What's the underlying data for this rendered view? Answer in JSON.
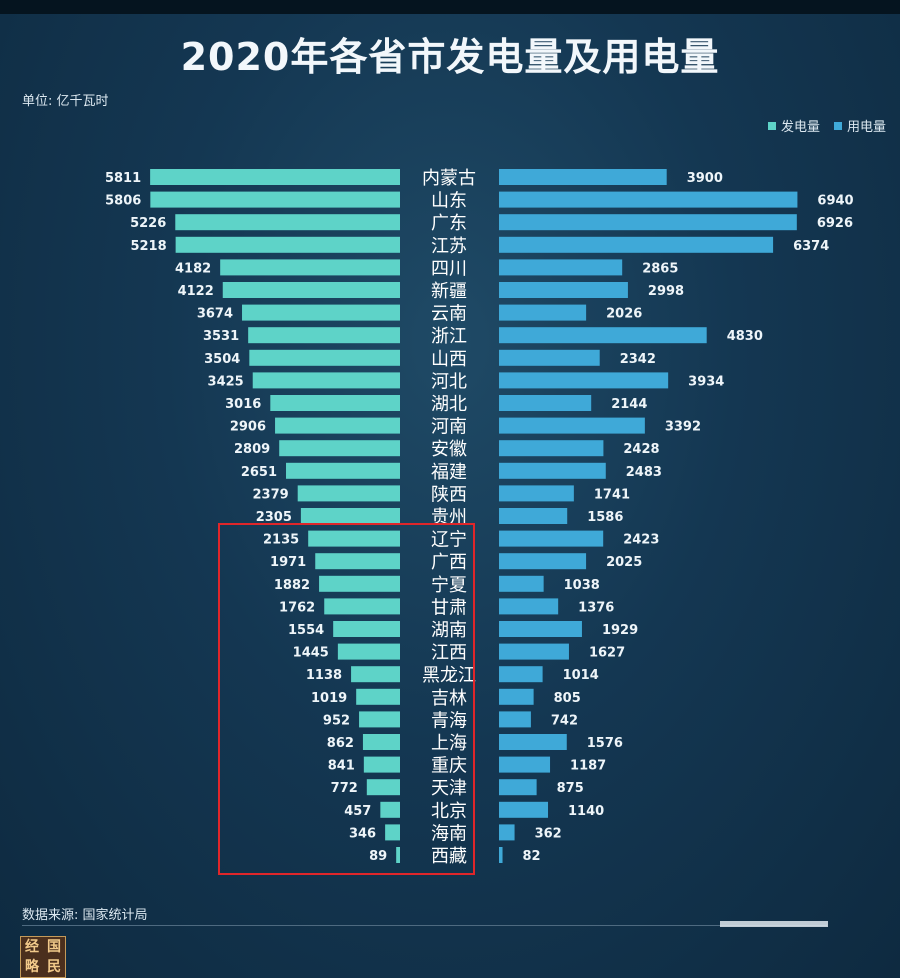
{
  "title": "2020年各省市发电量及用电量",
  "unit": "单位: 亿千瓦时",
  "source": "数据来源: 国家统计局",
  "logo_text": [
    "经",
    "国",
    "略",
    "民"
  ],
  "colors": {
    "generation": "#5ed3c8",
    "consumption": "#3fa9d8",
    "highlight": "#e0262a"
  },
  "legend": [
    {
      "name": "发电量",
      "color": "#5ed3c8"
    },
    {
      "name": "用电量",
      "color": "#3fa9d8"
    }
  ],
  "chart_data": {
    "type": "bar",
    "title": "2020年各省市发电量及用电量",
    "categories": [
      "内蒙古",
      "山东",
      "广东",
      "江苏",
      "四川",
      "新疆",
      "云南",
      "浙江",
      "山西",
      "河北",
      "湖北",
      "河南",
      "安徽",
      "福建",
      "陕西",
      "贵州",
      "辽宁",
      "广西",
      "宁夏",
      "甘肃",
      "湖南",
      "江西",
      "黑龙江",
      "吉林",
      "青海",
      "上海",
      "重庆",
      "天津",
      "北京",
      "海南",
      "西藏"
    ],
    "series": [
      {
        "name": "发电量",
        "values": [
          5811,
          5806,
          5226,
          5218,
          4182,
          4122,
          3674,
          3531,
          3504,
          3425,
          3016,
          2906,
          2809,
          2651,
          2379,
          2305,
          2135,
          1971,
          1882,
          1762,
          1554,
          1445,
          1138,
          1019,
          952,
          862,
          841,
          772,
          457,
          346,
          89
        ]
      },
      {
        "name": "用电量",
        "values": [
          3900,
          6940,
          6926,
          6374,
          2865,
          2998,
          2026,
          4830,
          2342,
          3934,
          2144,
          3392,
          2428,
          2483,
          1741,
          1586,
          2423,
          2025,
          1038,
          1376,
          1929,
          1627,
          1014,
          805,
          742,
          1576,
          1187,
          875,
          1140,
          362,
          82
        ]
      }
    ],
    "highlighted_categories": [
      "辽宁",
      "广西",
      "宁夏",
      "甘肃",
      "湖南",
      "江西",
      "黑龙江",
      "吉林",
      "青海",
      "上海",
      "重庆",
      "天津",
      "北京",
      "海南",
      "西藏"
    ],
    "legend_position": "top-right",
    "grid": false
  }
}
